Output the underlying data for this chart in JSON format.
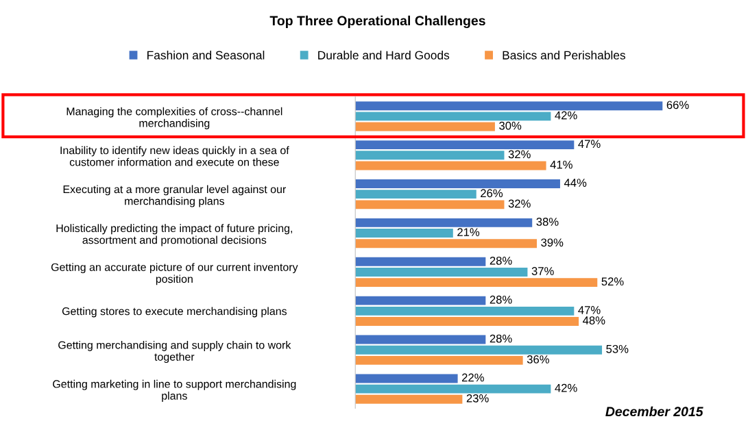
{
  "chart_data": {
    "type": "bar",
    "orientation": "horizontal",
    "title": "Top Three Operational Challenges",
    "categories": [
      "Managing the complexities of cross--channel\nmerchandising",
      "Inability to identify new ideas quickly in a sea of\ncustomer information and execute on these",
      "Executing at a more granular level against our\nmerchandising plans",
      "Holistically predicting the impact of future pricing,\nassortment and promotional decisions",
      "Getting an accurate picture of our current inventory\nposition",
      "Getting stores to execute merchandising plans",
      "Getting merchandising and supply chain to work\ntogether",
      "Getting marketing in line to support merchandising\nplans"
    ],
    "series": [
      {
        "name": "Fashion and Seasonal",
        "color": "#4472c4",
        "values": [
          66,
          47,
          44,
          38,
          28,
          28,
          28,
          22
        ],
        "value_labels": [
          "66%",
          "47%",
          "44%",
          "38%",
          "28%",
          "28%",
          "28%",
          "22%"
        ]
      },
      {
        "name": "Durable and Hard Goods",
        "color": "#4bacc6",
        "values": [
          42,
          32,
          26,
          21,
          37,
          47,
          53,
          42
        ],
        "value_labels": [
          "42%",
          "32%",
          "26%",
          "21%",
          "37%",
          "47%",
          "53%",
          "42%"
        ]
      },
      {
        "name": "Basics and Perishables",
        "color": "#f79646",
        "values": [
          30,
          41,
          32,
          39,
          52,
          48,
          36,
          23
        ],
        "value_labels": [
          "30%",
          "41%",
          "32%",
          "39%",
          "52%",
          "48%",
          "36%",
          "23%"
        ]
      }
    ],
    "legend": "top",
    "tick_labels": "y",
    "annotations": [
      "December 2015"
    ]
  }
}
